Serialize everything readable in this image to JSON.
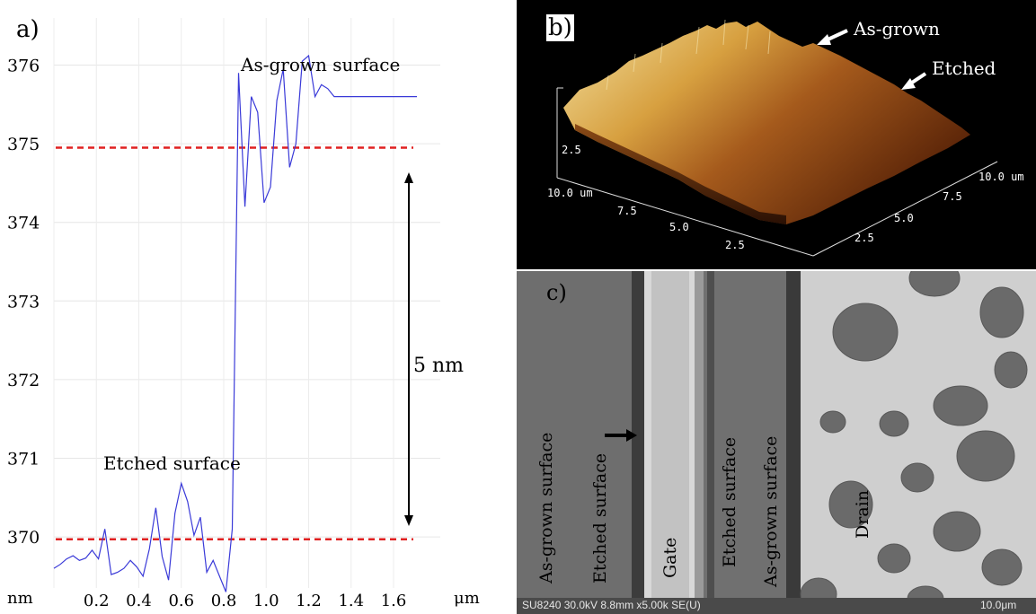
{
  "panel_labels": {
    "a": "a)",
    "b": "b)",
    "c": "c)"
  },
  "chart_data": {
    "type": "line",
    "xlabel_left": "nm",
    "xunit": "μm",
    "x_ticks": [
      "0.2",
      "0.4",
      "0.6",
      "0.8",
      "1.0",
      "1.2",
      "1.4",
      "1.6"
    ],
    "y_ticks": [
      "376",
      "375",
      "374",
      "373",
      "372",
      "371",
      "370"
    ],
    "xlim": [
      0.0,
      1.82
    ],
    "ylim": [
      369.35,
      376.6
    ],
    "grid": true,
    "series": [
      {
        "color": "#3a3ad8",
        "x": [
          0.0,
          0.03,
          0.06,
          0.09,
          0.12,
          0.15,
          0.18,
          0.21,
          0.24,
          0.27,
          0.3,
          0.33,
          0.36,
          0.39,
          0.42,
          0.45,
          0.48,
          0.51,
          0.54,
          0.57,
          0.6,
          0.63,
          0.66,
          0.69,
          0.72,
          0.75,
          0.78,
          0.81,
          0.84,
          0.87,
          0.9,
          0.93,
          0.96,
          0.99,
          1.02,
          1.05,
          1.08,
          1.11,
          1.14,
          1.17,
          1.2,
          1.23,
          1.26,
          1.29,
          1.32,
          1.35,
          1.38,
          1.41,
          1.44,
          1.47,
          1.5,
          1.53,
          1.56,
          1.59,
          1.62,
          1.65,
          1.68,
          1.71
        ],
        "y": [
          369.6,
          369.65,
          369.72,
          369.76,
          369.7,
          369.73,
          369.83,
          369.72,
          370.1,
          369.52,
          369.55,
          369.6,
          369.7,
          369.62,
          369.5,
          369.85,
          370.37,
          369.75,
          369.45,
          370.3,
          370.68,
          370.45,
          370.02,
          370.25,
          369.55,
          369.7,
          369.5,
          369.3,
          370.1,
          375.9,
          374.2,
          375.6,
          375.4,
          374.25,
          374.45,
          375.55,
          375.95,
          374.7,
          375.0,
          376.05,
          376.12,
          375.6,
          375.75,
          375.7,
          375.6,
          375.6,
          375.6,
          375.6,
          375.6,
          375.6,
          375.6,
          375.6,
          375.6,
          375.6,
          375.6,
          375.6,
          375.6,
          375.6
        ]
      }
    ],
    "reference_lines": [
      {
        "y": 374.95,
        "color": "#e02020",
        "style": "dashed"
      },
      {
        "y": 369.97,
        "color": "#e02020",
        "style": "dashed"
      }
    ],
    "annotations": {
      "as_grown": "As-grown surface",
      "etched": "Etched surface",
      "step": "5 nm"
    }
  },
  "panel_b": {
    "arrow_as_grown": "As-grown",
    "arrow_etched": "Etched",
    "axis_ticks_left": [
      "10.0 um",
      "7.5",
      "5.0",
      "2.5"
    ],
    "axis_ticks_right": [
      "10.0 um",
      "7.5",
      "5.0",
      "2.5"
    ],
    "axis_tick_z": "2.5"
  },
  "panel_c": {
    "labels": [
      "As-grown surface",
      "Etched surface",
      "Gate",
      "Etched surface",
      "As-grown surface",
      "Drain"
    ],
    "info_bar": "SU8240 30.0kV 8.8mm x5.00k SE(U)",
    "scale": "10.0μm"
  }
}
